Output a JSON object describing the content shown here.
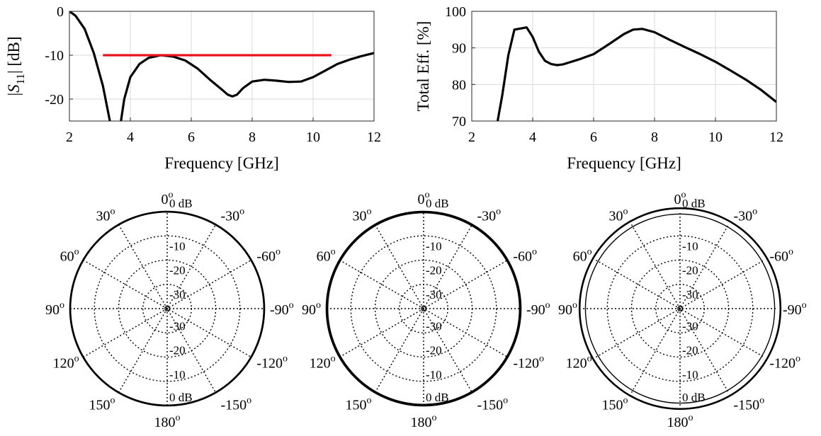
{
  "chart_data": [
    {
      "type": "line",
      "xlabel": "Frequency [GHz]",
      "ylabel_parts": {
        "pre": "|",
        "S": "S",
        "sub": "11",
        "post": "| [dB]"
      },
      "xlim": [
        2,
        12
      ],
      "ylim": [
        -25,
        0
      ],
      "xticks": [
        "2",
        "4",
        "6",
        "8",
        "10",
        "12"
      ],
      "yticks": [
        "0",
        "-10",
        "-20"
      ],
      "grid": true,
      "series": [
        {
          "color": "#000000",
          "x": [
            2.0,
            2.2,
            2.5,
            2.8,
            3.1,
            3.3,
            3.5,
            3.65,
            3.8,
            4.0,
            4.3,
            4.6,
            5.0,
            5.4,
            5.8,
            6.2,
            6.6,
            7.0,
            7.2,
            7.35,
            7.5,
            7.7,
            8.0,
            8.4,
            8.8,
            9.2,
            9.6,
            10.0,
            10.4,
            10.8,
            11.2,
            11.6,
            12.0
          ],
          "y": [
            0.0,
            -1.0,
            -4.0,
            -9.5,
            -17.0,
            -24.0,
            -31.0,
            -27.0,
            -20.0,
            -15.0,
            -12.0,
            -10.6,
            -10.0,
            -10.3,
            -11.2,
            -13.0,
            -15.5,
            -17.8,
            -19.0,
            -19.4,
            -19.0,
            -17.5,
            -16.0,
            -15.6,
            -15.8,
            -16.1,
            -16.0,
            -15.0,
            -13.5,
            -12.0,
            -11.0,
            -10.2,
            -9.5
          ]
        },
        {
          "color": "#e8141a",
          "x": [
            3.1,
            10.6
          ],
          "y": [
            -10,
            -10
          ]
        }
      ]
    },
    {
      "type": "line",
      "xlabel": "Frequency [GHz]",
      "ylabel": "Total Eff. [%]",
      "xlim": [
        2,
        12
      ],
      "ylim": [
        70,
        100
      ],
      "xticks": [
        "2",
        "4",
        "6",
        "8",
        "10",
        "12"
      ],
      "yticks": [
        "100",
        "90",
        "80",
        "70"
      ],
      "grid": true,
      "series": [
        {
          "color": "#000000",
          "x": [
            2.85,
            3.0,
            3.2,
            3.4,
            3.6,
            3.8,
            4.0,
            4.2,
            4.4,
            4.6,
            4.8,
            5.0,
            5.5,
            6.0,
            6.5,
            7.0,
            7.3,
            7.6,
            8.0,
            8.5,
            9.0,
            9.5,
            10.0,
            10.5,
            11.0,
            11.5,
            12.0
          ],
          "y": [
            70.0,
            77.0,
            88.0,
            95.0,
            95.3,
            95.6,
            93.0,
            89.0,
            86.5,
            85.6,
            85.3,
            85.5,
            86.8,
            88.3,
            91.0,
            93.8,
            95.0,
            95.2,
            94.3,
            92.2,
            90.2,
            88.3,
            86.2,
            83.8,
            81.3,
            78.5,
            75.2
          ]
        }
      ]
    },
    {
      "type": "polar",
      "angle_labels": [
        "0",
        "30",
        "60",
        "90",
        "120",
        "150",
        "180",
        "-150",
        "-120",
        "-90",
        "-60",
        "-30"
      ],
      "degree_mark": "o",
      "ring_labels_upper": [
        "0 dB",
        "-10",
        "-20",
        "-30"
      ],
      "ring_labels_lower": [
        "-30",
        "-20",
        "-10",
        "0 dB"
      ],
      "rlim_db": [
        -40,
        0
      ],
      "traces_db": [
        0.0,
        -0.2
      ]
    },
    {
      "type": "polar",
      "angle_labels": [
        "0",
        "30",
        "60",
        "90",
        "120",
        "150",
        "180",
        "-150",
        "-120",
        "-90",
        "-60",
        "-30"
      ],
      "degree_mark": "o",
      "ring_labels_upper": [
        "0 dB",
        "-10",
        "-20",
        "-30"
      ],
      "ring_labels_lower": [
        "-30",
        "-20",
        "-10",
        "0 dB"
      ],
      "rlim_db": [
        -40,
        0
      ],
      "traces_db": [
        0.0,
        -0.5
      ]
    },
    {
      "type": "polar",
      "angle_labels": [
        "0",
        "30",
        "60",
        "90",
        "120",
        "150",
        "180",
        "-150",
        "-120",
        "-90",
        "-60",
        "-30"
      ],
      "degree_mark": "o",
      "ring_labels_upper": [
        "0 dB",
        "-10",
        "-20",
        "-30"
      ],
      "ring_labels_lower": [
        "-30",
        "-20",
        "-10",
        "0 dB"
      ],
      "rlim_db": [
        -40,
        0
      ],
      "traces_db": [
        1.4,
        -1.0
      ]
    }
  ]
}
